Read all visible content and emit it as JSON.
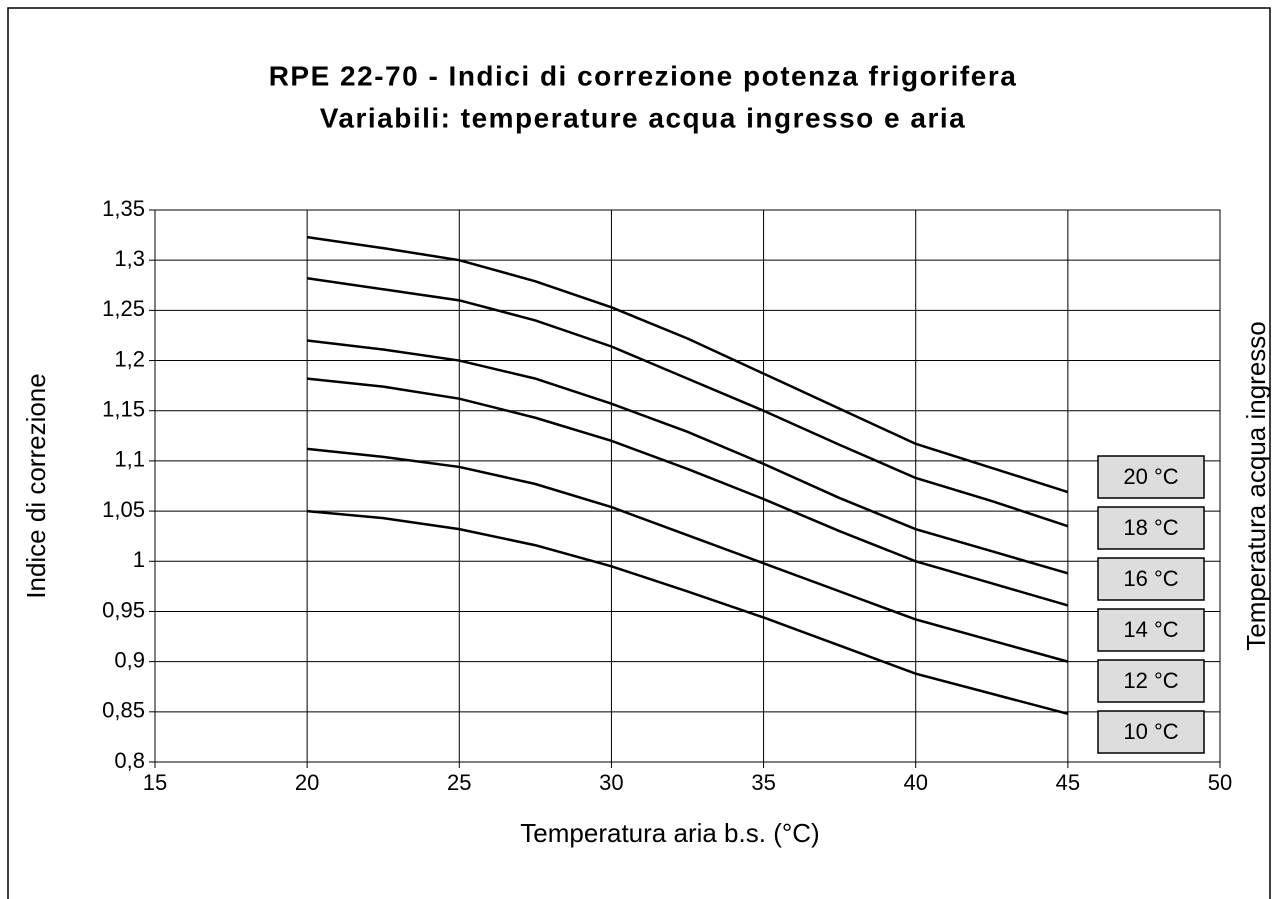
{
  "chart_data": {
    "type": "line",
    "title": "RPE 22-70 - Indici di correzione potenza frigorifera",
    "subtitle": "Variabili: temperature acqua ingresso e aria",
    "x_label": "Temperatura aria b.s. (°C)",
    "y_label": "Indice di correzione",
    "legend_title": "Temperatura acqua ingresso",
    "x": [
      20,
      22.5,
      25,
      27.5,
      30,
      32.5,
      35,
      37.5,
      40,
      42.5,
      45
    ],
    "series": [
      {
        "name": "20 °C",
        "color": "#000000",
        "values": [
          1.323,
          1.312,
          1.3,
          1.279,
          1.253,
          1.222,
          1.187,
          1.152,
          1.117,
          1.093,
          1.069
        ]
      },
      {
        "name": "18 °C",
        "color": "#000000",
        "values": [
          1.282,
          1.271,
          1.26,
          1.24,
          1.214,
          1.182,
          1.15,
          1.116,
          1.083,
          1.06,
          1.035
        ]
      },
      {
        "name": "16 °C",
        "color": "#000000",
        "values": [
          1.22,
          1.211,
          1.2,
          1.182,
          1.157,
          1.129,
          1.097,
          1.063,
          1.032,
          1.01,
          0.988
        ]
      },
      {
        "name": "14 °C",
        "color": "#000000",
        "values": [
          1.182,
          1.174,
          1.162,
          1.143,
          1.12,
          1.092,
          1.062,
          1.03,
          1.0,
          0.978,
          0.956
        ]
      },
      {
        "name": "12 °C",
        "color": "#000000",
        "values": [
          1.112,
          1.104,
          1.094,
          1.077,
          1.054,
          1.026,
          0.998,
          0.97,
          0.942,
          0.921,
          0.9
        ]
      },
      {
        "name": "10 °C",
        "color": "#000000",
        "values": [
          1.05,
          1.043,
          1.032,
          1.016,
          0.995,
          0.97,
          0.944,
          0.916,
          0.888,
          0.868,
          0.848
        ]
      }
    ],
    "xlim": [
      15,
      50
    ],
    "xticks": [
      15,
      20,
      25,
      30,
      35,
      40,
      45,
      50
    ],
    "ylim": [
      0.8,
      1.35
    ],
    "yticks": [
      {
        "value": 0.8,
        "label": "0,8"
      },
      {
        "value": 0.85,
        "label": "0,85"
      },
      {
        "value": 0.9,
        "label": "0,9"
      },
      {
        "value": 0.95,
        "label": "0,95"
      },
      1,
      {
        "value": 1.05,
        "label": "1,05"
      },
      {
        "value": 1.1,
        "label": "1,1"
      },
      {
        "value": 1.15,
        "label": "1,15"
      },
      {
        "value": 1.2,
        "label": "1,2"
      },
      {
        "value": 1.25,
        "label": "1,25"
      },
      {
        "value": 1.3,
        "label": "1,3"
      },
      {
        "value": 1.35,
        "label": "1,35"
      }
    ],
    "grid": true,
    "legend": "right"
  }
}
